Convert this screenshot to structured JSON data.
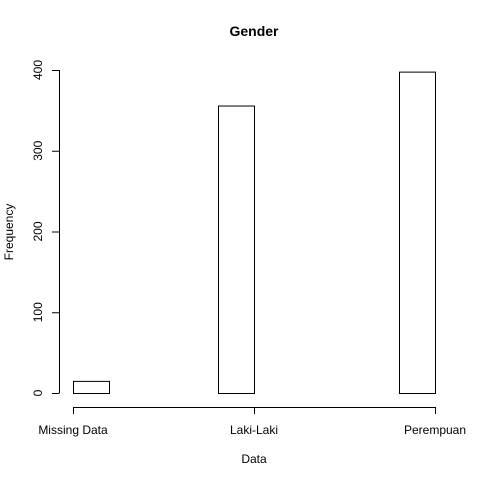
{
  "chart_data": {
    "type": "bar",
    "title": "Gender",
    "xlabel": "Data",
    "ylabel": "Frequency",
    "categories": [
      "Missing Data",
      "Laki-Laki",
      "Perempuan"
    ],
    "values": [
      15,
      356,
      398
    ],
    "ylim": [
      0,
      400
    ],
    "yticks": [
      0,
      100,
      200,
      300,
      400
    ],
    "grid": false,
    "legend": "none",
    "colors": {
      "bar_fill": "#ffffff",
      "bar_stroke": "#000000",
      "axis": "#000000",
      "background": "#ffffff"
    }
  }
}
